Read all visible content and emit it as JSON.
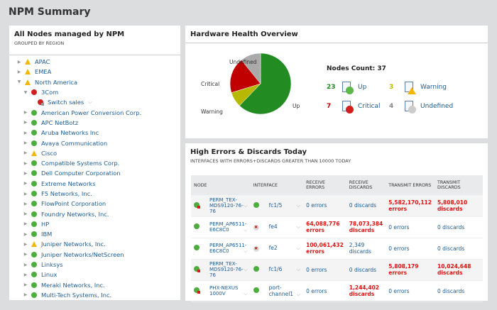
{
  "page_title": "NPM Summary",
  "nodes_panel": {
    "title": "All Nodes managed by NPM",
    "subtitle": "GROUPED BY REGION",
    "items": [
      {
        "label": "APAC",
        "status": "warning",
        "level": 0,
        "expanded": false
      },
      {
        "label": "EMEA",
        "status": "warning",
        "level": 0,
        "expanded": false
      },
      {
        "label": "North America",
        "status": "warning",
        "level": 0,
        "expanded": true
      },
      {
        "label": "3Com",
        "status": "critical",
        "level": 1,
        "expanded": true
      },
      {
        "label": "Switch sales",
        "status": "critical-node",
        "level": 2
      },
      {
        "label": "American Power Conversion Corp.",
        "status": "up",
        "level": 1
      },
      {
        "label": "APC NetBotz",
        "status": "up",
        "level": 1
      },
      {
        "label": "Aruba Networks Inc",
        "status": "up",
        "level": 1
      },
      {
        "label": "Avaya Communication",
        "status": "up",
        "level": 1
      },
      {
        "label": "Cisco",
        "status": "warning",
        "level": 1
      },
      {
        "label": "Compatible Systems Corp.",
        "status": "up",
        "level": 1
      },
      {
        "label": "Dell Computer Corporation",
        "status": "up",
        "level": 1
      },
      {
        "label": "Extreme Networks",
        "status": "up",
        "level": 1
      },
      {
        "label": "F5 Networks, Inc.",
        "status": "up",
        "level": 1
      },
      {
        "label": "FlowPoint Corporation",
        "status": "up",
        "level": 1
      },
      {
        "label": "Foundry Networks, Inc.",
        "status": "up",
        "level": 1
      },
      {
        "label": "HP",
        "status": "up",
        "level": 1
      },
      {
        "label": "IBM",
        "status": "up",
        "level": 1
      },
      {
        "label": "Juniper Networks, Inc.",
        "status": "warning",
        "level": 1
      },
      {
        "label": "Juniper Networks/NetScreen",
        "status": "up",
        "level": 1
      },
      {
        "label": "Linksys",
        "status": "up",
        "level": 1
      },
      {
        "label": "Linux",
        "status": "up",
        "level": 1
      },
      {
        "label": "Meraki Networks, Inc.",
        "status": "up",
        "level": 1
      },
      {
        "label": "Multi-Tech Systems, Inc.",
        "status": "up",
        "level": 1
      }
    ]
  },
  "hardware": {
    "title": "Hardware Health Overview",
    "nodes_count": "Nodes Count: 37",
    "chart_data": {
      "type": "pie",
      "slices": [
        {
          "name": "Up",
          "value": 23,
          "color": "#228b22"
        },
        {
          "name": "Warning",
          "value": 3,
          "color": "#b8b800"
        },
        {
          "name": "Critical",
          "value": 7,
          "color": "#c00000"
        },
        {
          "name": "Undefined",
          "value": 4,
          "color": "#aaaaaa"
        }
      ]
    },
    "stats": [
      {
        "count": "23",
        "label": "Up",
        "count_color": "#228b22",
        "icon_color": "#5cb848"
      },
      {
        "count": "3",
        "label": "Warning",
        "count_color": "#b8b800",
        "icon_color": "#f2b705"
      },
      {
        "count": "7",
        "label": "Critical",
        "count_color": "#c00000",
        "icon_color": "#d21f1f"
      },
      {
        "count": "4",
        "label": "Undefined",
        "count_color": "#888888",
        "icon_color": "#cccccc"
      }
    ]
  },
  "errors": {
    "title": "High Errors & Discards Today",
    "subtitle": "INTERFACES WITH ERRORS+DISCARDS GREATER THAN 10000 TODAY",
    "columns": [
      "NODE",
      "INTERFACE",
      "RECEIVE ERRORS",
      "RECEIVE DISCARDS",
      "TRANSMIT ERRORS",
      "TRANSMIT DISCARDS"
    ],
    "rows": [
      {
        "node": "PERM_TEX-MDS9120-76-76",
        "node_status": "up-critical",
        "iface": "fc1/5",
        "iface_status": "up",
        "rx_err": "0 errors",
        "rx_disc": "0 discards",
        "tx_err": "5,582,170,112 errors",
        "tx_disc": "5,808,010 discards",
        "hl": [
          false,
          false,
          true,
          true
        ]
      },
      {
        "node": "PERM_AP6511-E6C8C0",
        "node_status": "up",
        "iface": "fe4",
        "iface_status": "down",
        "rx_err": "64,088,776 errors",
        "rx_disc": "78,073,384 discards",
        "tx_err": "0 errors",
        "tx_disc": "0 discards",
        "hl": [
          true,
          true,
          false,
          false
        ]
      },
      {
        "node": "PERM_AP6511-E6C8C0",
        "node_status": "up",
        "iface": "fe2",
        "iface_status": "down",
        "rx_err": "100,061,432 errors",
        "rx_disc": "2,349 discards",
        "tx_err": "0 errors",
        "tx_disc": "0 discards",
        "hl": [
          true,
          false,
          false,
          false
        ]
      },
      {
        "node": "PERM_TEX-MDS9120-76-76",
        "node_status": "up-critical",
        "iface": "fc1/6",
        "iface_status": "up",
        "rx_err": "0 errors",
        "rx_disc": "0 discards",
        "tx_err": "5,808,179 errors",
        "tx_disc": "10,024,648 discards",
        "hl": [
          false,
          false,
          true,
          true
        ]
      },
      {
        "node": "PHX-NEXUS 1000V",
        "node_status": "up-critical",
        "iface": "port-channel1",
        "iface_status": "up",
        "rx_err": "0 errors",
        "rx_disc": "1,244,402 discards",
        "tx_err": "0 errors",
        "tx_disc": "0 discards",
        "hl": [
          false,
          true,
          false,
          false
        ]
      }
    ]
  }
}
